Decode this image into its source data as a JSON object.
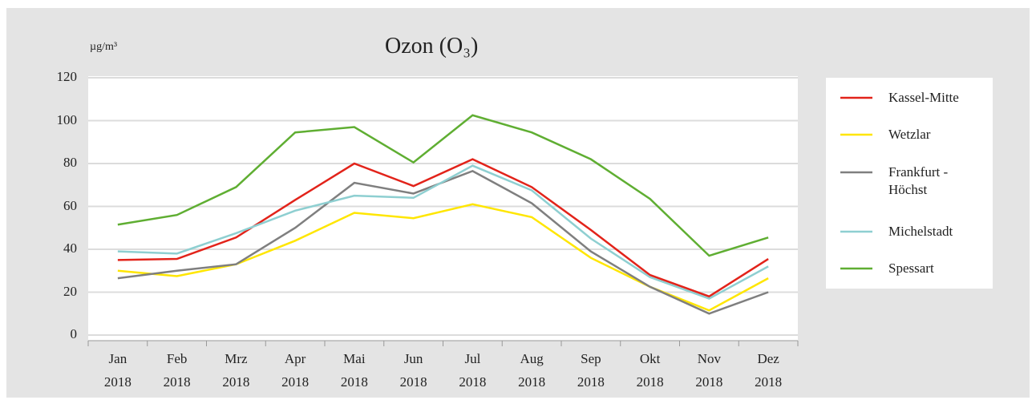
{
  "chart_data": {
    "type": "line",
    "title": "Ozon (O₃)",
    "y_label": "µg/m³",
    "categories": [
      "Jan 2018",
      "Feb 2018",
      "Mrz 2018",
      "Apr 2018",
      "Mai 2018",
      "Jun 2018",
      "Jul 2018",
      "Aug 2018",
      "Sep 2018",
      "Okt 2018",
      "Nov 2018",
      "Dez 2018"
    ],
    "series": [
      {
        "name": "Kassel-Mitte",
        "color": "#e2231a",
        "values": [
          35,
          35.5,
          45.5,
          63,
          80,
          69.5,
          82,
          69,
          49,
          28,
          18,
          35.5
        ]
      },
      {
        "name": "Wetzlar",
        "color": "#ffe600",
        "values": [
          30,
          27.5,
          33,
          44,
          57,
          54.5,
          61,
          55,
          36,
          22.5,
          11.5,
          26.5
        ]
      },
      {
        "name": "Frankfurt - Höchst",
        "color": "#7f7f7f",
        "values": [
          26.5,
          30,
          33,
          50,
          71,
          66,
          76.5,
          61.5,
          39,
          22.5,
          10,
          20
        ]
      },
      {
        "name": "Michelstadt",
        "color": "#8ecfd1",
        "values": [
          39,
          38,
          47.5,
          58,
          65,
          64,
          79,
          67.5,
          45,
          27,
          17,
          32
        ]
      },
      {
        "name": "Spessart",
        "color": "#5fae32",
        "values": [
          51.5,
          56,
          69,
          94.5,
          97,
          80.5,
          102.5,
          94.5,
          82,
          63.5,
          37,
          45.5
        ]
      }
    ],
    "ylim": [
      0,
      120
    ],
    "yticks": [
      0,
      20,
      40,
      60,
      80,
      100,
      120
    ],
    "grid": true
  }
}
